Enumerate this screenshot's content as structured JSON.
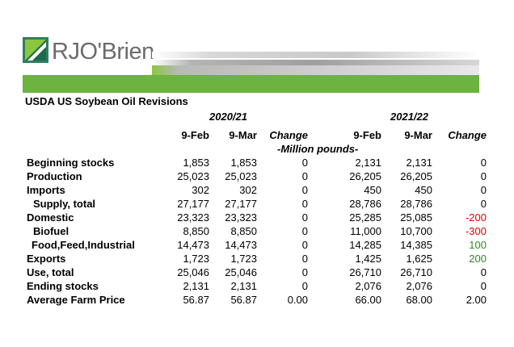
{
  "brand": {
    "name": "RJO'Brien",
    "accent": "#6cb33f"
  },
  "report": {
    "title": "USDA US Soybean Oil Revisions",
    "units": "-Million pounds-",
    "years": [
      "2020/21",
      "2021/22"
    ],
    "columns": [
      "9-Feb",
      "9-Mar",
      "Change",
      "9-Feb",
      "9-Mar",
      "Change"
    ]
  },
  "rows": [
    {
      "label": "Beginning stocks",
      "values": [
        "1,853",
        "1,853",
        "0",
        "2,131",
        "2,131",
        "0"
      ]
    },
    {
      "label": "Production",
      "values": [
        "25,023",
        "25,023",
        "0",
        "26,205",
        "26,205",
        "0"
      ]
    },
    {
      "label": "Imports",
      "values": [
        "302",
        "302",
        "0",
        "450",
        "450",
        "0"
      ]
    },
    {
      "label": "Supply, total",
      "values": [
        "27,177",
        "27,177",
        "0",
        "28,786",
        "28,786",
        "0"
      ]
    },
    {
      "label": "Domestic",
      "values": [
        "23,323",
        "23,323",
        "0",
        "25,285",
        "25,085",
        "-200"
      ]
    },
    {
      "label": "Biofuel",
      "values": [
        "8,850",
        "8,850",
        "0",
        "11,000",
        "10,700",
        "-300"
      ]
    },
    {
      "label": "Food,Feed,Industrial",
      "values": [
        "14,473",
        "14,473",
        "0",
        "14,285",
        "14,385",
        "100"
      ]
    },
    {
      "label": "Exports",
      "values": [
        "1,723",
        "1,723",
        "0",
        "1,425",
        "1,625",
        "200"
      ]
    },
    {
      "label": "Use, total",
      "values": [
        "25,046",
        "25,046",
        "0",
        "26,710",
        "26,710",
        "0"
      ]
    },
    {
      "label": "Ending stocks",
      "values": [
        "2,131",
        "2,131",
        "0",
        "2,076",
        "2,076",
        "0"
      ]
    },
    {
      "label": "Average Farm Price",
      "values": [
        "56.87",
        "56.87",
        "0.00",
        "66.00",
        "68.00",
        "2.00"
      ]
    }
  ]
}
